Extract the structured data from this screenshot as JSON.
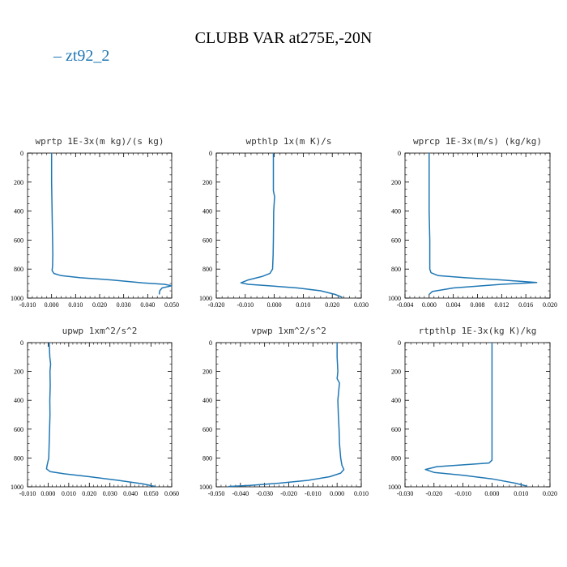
{
  "title": "CLUBB VAR at275E,-20N",
  "legend": {
    "label": "zt92_2",
    "color": "#1f77b4"
  },
  "chart_data": [
    {
      "type": "line",
      "title": "wprtp  1E-3x(m kg)/(s kg)",
      "xlim": [
        -0.01,
        0.05
      ],
      "xticks": [
        "-0.010",
        "0.000",
        "0.010",
        "0.020",
        "0.030",
        "0.040",
        "0.050"
      ],
      "ylim": [
        0,
        1000
      ],
      "yticks": [
        "0",
        "200",
        "400",
        "600",
        "800",
        "1000"
      ],
      "series": [
        {
          "x": [
            0.0,
            0.0,
            0.0002,
            0.0003,
            0.0004,
            0.0005,
            0.0004,
            0.0002,
            0.001,
            0.004,
            0.012,
            0.025,
            0.038,
            0.047,
            0.05,
            0.046,
            0.045,
            0.0448
          ],
          "y": [
            0,
            200,
            400,
            500,
            600,
            700,
            780,
            810,
            830,
            845,
            860,
            875,
            895,
            905,
            915,
            930,
            950,
            975
          ]
        }
      ]
    },
    {
      "type": "line",
      "title": "wpthlp  1x(m K)/s",
      "xlim": [
        -0.02,
        0.03
      ],
      "xticks": [
        "-0.020",
        "-0.010",
        "0.000",
        "0.010",
        "0.020",
        "0.030"
      ],
      "ylim": [
        0,
        1000
      ],
      "yticks": [
        "0",
        "200",
        "400",
        "600",
        "800",
        "1000"
      ],
      "series": [
        {
          "x": [
            -0.0003,
            -0.0003,
            -0.0003,
            0.0001,
            -0.0002,
            -0.0003,
            -0.0004,
            -0.0006,
            -0.0015,
            -0.004,
            -0.009,
            -0.0115,
            -0.009,
            -0.002,
            0.008,
            0.016,
            0.021,
            0.0235
          ],
          "y": [
            0,
            200,
            260,
            300,
            400,
            600,
            700,
            800,
            830,
            850,
            875,
            895,
            905,
            915,
            930,
            950,
            975,
            995
          ]
        }
      ]
    },
    {
      "type": "line",
      "title": "wprcp  1E-3x(m/s) (kg/kg)",
      "xlim": [
        -0.004,
        0.02
      ],
      "xticks": [
        "-0.004",
        "0.000",
        "0.004",
        "0.008",
        "0.012",
        "0.016",
        "0.020"
      ],
      "ylim": [
        0,
        1000
      ],
      "yticks": [
        "0",
        "200",
        "400",
        "600",
        "800",
        "1000"
      ],
      "series": [
        {
          "x": [
            0.0,
            0.0,
            0.0,
            0.0001,
            0.0001,
            0.0003,
            0.0015,
            0.006,
            0.012,
            0.0178,
            0.012,
            0.004,
            0.0005,
            0.0
          ],
          "y": [
            0,
            200,
            400,
            600,
            800,
            825,
            845,
            860,
            875,
            893,
            905,
            930,
            955,
            975
          ]
        }
      ]
    },
    {
      "type": "line",
      "title": "upwp  1xm^2/s^2",
      "xlim": [
        -0.01,
        0.06
      ],
      "xticks": [
        "-0.010",
        "0.000",
        "0.010",
        "0.020",
        "0.030",
        "0.040",
        "0.050",
        "0.060"
      ],
      "ylim": [
        0,
        1000
      ],
      "yticks": [
        "0",
        "200",
        "400",
        "600",
        "800",
        "1000"
      ],
      "series": [
        {
          "x": [
            0.0005,
            0.0008,
            0.0012,
            0.0009,
            0.001,
            0.0008,
            0.0009,
            0.0007,
            0.0005,
            0.0003,
            -0.0005,
            -0.0008,
            0.001,
            0.008,
            0.02,
            0.034,
            0.046,
            0.052
          ],
          "y": [
            0,
            100,
            150,
            200,
            300,
            400,
            500,
            600,
            700,
            800,
            850,
            875,
            895,
            910,
            930,
            955,
            980,
            998
          ]
        }
      ]
    },
    {
      "type": "line",
      "title": "vpwp  1xm^2/s^2",
      "xlim": [
        -0.05,
        0.01
      ],
      "xticks": [
        "-0.050",
        "-0.040",
        "-0.030",
        "-0.020",
        "-0.010",
        "0.000",
        "0.010"
      ],
      "ylim": [
        0,
        1000
      ],
      "yticks": [
        "0",
        "200",
        "400",
        "600",
        "800",
        "1000"
      ],
      "series": [
        {
          "x": [
            0.0,
            0.0,
            0.0003,
            0.0,
            0.001,
            0.0003,
            0.0005,
            0.0008,
            0.001,
            0.0015,
            0.002,
            0.0028,
            0.0015,
            -0.003,
            -0.012,
            -0.024,
            -0.036,
            -0.045
          ],
          "y": [
            0,
            100,
            200,
            250,
            280,
            400,
            500,
            600,
            700,
            800,
            850,
            880,
            905,
            930,
            955,
            975,
            990,
            998
          ]
        }
      ]
    },
    {
      "type": "line",
      "title": "rtpthlp  1E-3x(kg K)/kg",
      "xlim": [
        -0.03,
        0.02
      ],
      "xticks": [
        "-0.030",
        "-0.020",
        "-0.010",
        "0.000",
        "0.010",
        "0.020"
      ],
      "ylim": [
        0,
        1000
      ],
      "yticks": [
        "0",
        "200",
        "400",
        "600",
        "800",
        "1000"
      ],
      "series": [
        {
          "x": [
            0.0,
            0.0,
            0.0,
            0.0,
            0.0,
            0.0,
            0.0,
            0.0,
            -0.001,
            -0.008,
            -0.019,
            -0.023,
            -0.02,
            -0.01,
            0.0,
            0.008,
            0.012
          ],
          "y": [
            0,
            200,
            400,
            600,
            700,
            780,
            800,
            815,
            835,
            845,
            860,
            880,
            900,
            920,
            945,
            975,
            995
          ]
        }
      ]
    }
  ]
}
